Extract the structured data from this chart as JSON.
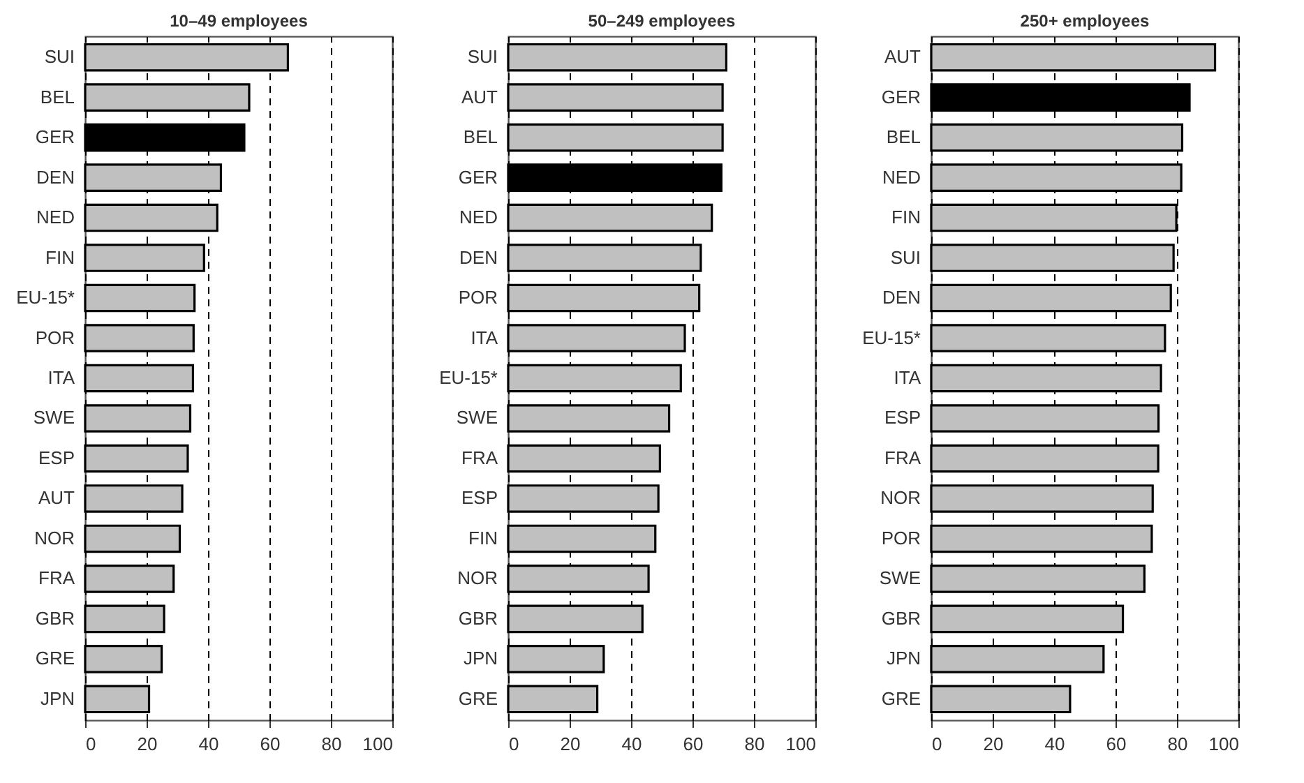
{
  "chart_data": [
    {
      "type": "bar",
      "orientation": "horizontal",
      "title": "10–49 employees",
      "grid": "x",
      "xlim": [
        0,
        100
      ],
      "xticks": [
        0,
        20,
        40,
        60,
        80,
        100
      ],
      "categories": [
        "SUI",
        "BEL",
        "GER",
        "DEN",
        "NED",
        "FIN",
        "EU-15*",
        "POR",
        "ITA",
        "SWE",
        "ESP",
        "AUT",
        "NOR",
        "FRA",
        "GBR",
        "GRE",
        "JPN"
      ],
      "values": [
        66,
        53.4,
        51.8,
        44.2,
        43,
        38.7,
        35.6,
        35.3,
        35.1,
        34.2,
        33.4,
        31.6,
        30.8,
        28.8,
        25.7,
        24.9,
        20.8
      ],
      "colors": [
        "#c0c0c0",
        "#c0c0c0",
        "#000000",
        "#c0c0c0",
        "#c0c0c0",
        "#c0c0c0",
        "#c0c0c0",
        "#c0c0c0",
        "#c0c0c0",
        "#c0c0c0",
        "#c0c0c0",
        "#c0c0c0",
        "#c0c0c0",
        "#c0c0c0",
        "#c0c0c0",
        "#c0c0c0",
        "#c0c0c0"
      ]
    },
    {
      "type": "bar",
      "orientation": "horizontal",
      "title": "50–249 employees",
      "grid": "x",
      "xlim": [
        0,
        100
      ],
      "xticks": [
        0,
        20,
        40,
        60,
        80,
        100
      ],
      "categories": [
        "SUI",
        "AUT",
        "BEL",
        "GER",
        "NED",
        "DEN",
        "POR",
        "ITA",
        "EU-15*",
        "SWE",
        "FRA",
        "ESP",
        "FIN",
        "NOR",
        "GBR",
        "JPN",
        "GRE"
      ],
      "values": [
        71,
        69.8,
        69.8,
        69.4,
        66.3,
        62.7,
        62.2,
        57.5,
        56.2,
        52.4,
        49.4,
        48.9,
        47.9,
        45.7,
        43.7,
        31.1,
        29
      ],
      "colors": [
        "#c0c0c0",
        "#c0c0c0",
        "#c0c0c0",
        "#000000",
        "#c0c0c0",
        "#c0c0c0",
        "#c0c0c0",
        "#c0c0c0",
        "#c0c0c0",
        "#c0c0c0",
        "#c0c0c0",
        "#c0c0c0",
        "#c0c0c0",
        "#c0c0c0",
        "#c0c0c0",
        "#c0c0c0",
        "#c0c0c0"
      ]
    },
    {
      "type": "bar",
      "orientation": "horizontal",
      "title": "250+ employees",
      "grid": "x",
      "xlim": [
        0,
        100
      ],
      "xticks": [
        0,
        20,
        40,
        60,
        80,
        100
      ],
      "categories": [
        "AUT",
        "GER",
        "BEL",
        "NED",
        "FIN",
        "SUI",
        "DEN",
        "EU-15*",
        "ITA",
        "ESP",
        "FRA",
        "NOR",
        "POR",
        "SWE",
        "GBR",
        "JPN",
        "GRE"
      ],
      "values": [
        92.4,
        84.1,
        81.7,
        81.4,
        79.8,
        78.9,
        78,
        76.1,
        74.8,
        74,
        73.9,
        72.1,
        71.8,
        69.4,
        62.4,
        56.1,
        45.2
      ],
      "colors": [
        "#c0c0c0",
        "#000000",
        "#c0c0c0",
        "#c0c0c0",
        "#c0c0c0",
        "#c0c0c0",
        "#c0c0c0",
        "#c0c0c0",
        "#c0c0c0",
        "#c0c0c0",
        "#c0c0c0",
        "#c0c0c0",
        "#c0c0c0",
        "#c0c0c0",
        "#c0c0c0",
        "#c0c0c0",
        "#c0c0c0"
      ]
    }
  ]
}
